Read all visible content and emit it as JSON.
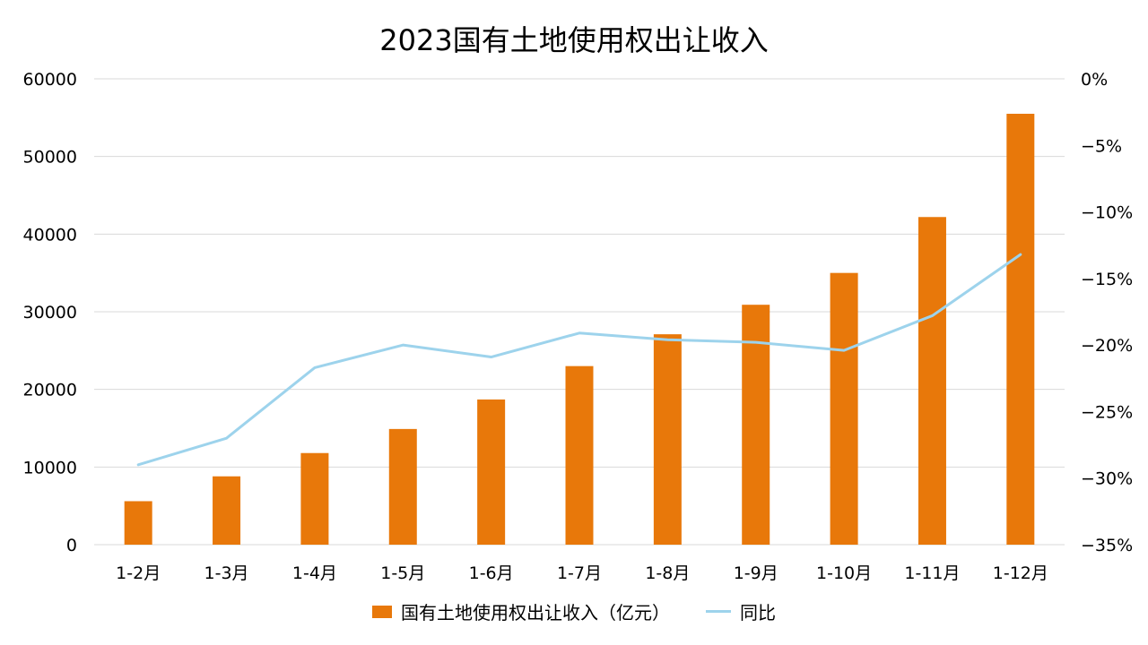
{
  "colors": {
    "bar": "#E8780A",
    "line": "#9DD3EC",
    "grid": "#D9D9D9"
  },
  "chart_data": {
    "type": "bar",
    "title": "2023国有土地使用权出让收入",
    "categories": [
      "1-2月",
      "1-3月",
      "1-4月",
      "1-5月",
      "1-6月",
      "1-7月",
      "1-8月",
      "1-9月",
      "1-10月",
      "1-11月",
      "1-12月"
    ],
    "series": [
      {
        "name": "国有土地使用权出让收入（亿元）",
        "type": "bar",
        "axis": "left",
        "values": [
          5600,
          8800,
          11800,
          14900,
          18700,
          23000,
          27100,
          30900,
          35000,
          42200,
          55500
        ]
      },
      {
        "name": "同比",
        "type": "line",
        "axis": "right",
        "values": [
          -29.0,
          -27.0,
          -21.7,
          -20.0,
          -20.9,
          -19.1,
          -19.6,
          -19.8,
          -20.4,
          -17.8,
          -13.2
        ]
      }
    ],
    "ylim": [
      0,
      60000
    ],
    "y_ticks": [
      "0",
      "10000",
      "20000",
      "30000",
      "40000",
      "50000",
      "60000"
    ],
    "y2lim": [
      -35,
      0
    ],
    "y2_ticks": [
      "−35%",
      "−30%",
      "−25%",
      "−20%",
      "−15%",
      "−10%",
      "−5%",
      "0%"
    ],
    "grid": true,
    "legend_position": "bottom"
  }
}
